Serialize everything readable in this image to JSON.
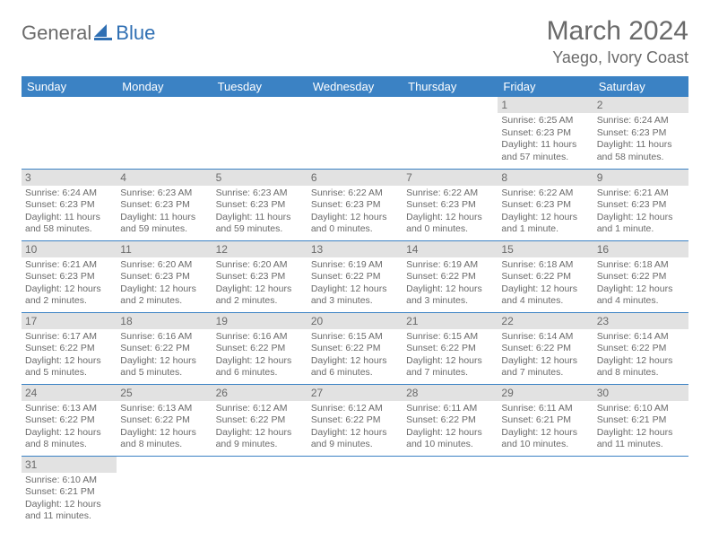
{
  "logo": {
    "word1": "General",
    "word2": "Blue",
    "sail_color": "#2f6fb3"
  },
  "title": "March 2024",
  "location": "Yaego, Ivory Coast",
  "colors": {
    "header_bg": "#3b82c4",
    "header_text": "#ffffff",
    "daynum_bg": "#e2e2e2",
    "text": "#6a6a6a",
    "rule": "#3b82c4"
  },
  "weekdays": [
    "Sunday",
    "Monday",
    "Tuesday",
    "Wednesday",
    "Thursday",
    "Friday",
    "Saturday"
  ],
  "first_weekday_index": 5,
  "days": [
    {
      "n": 1,
      "sunrise": "6:25 AM",
      "sunset": "6:23 PM",
      "daylight": "11 hours and 57 minutes."
    },
    {
      "n": 2,
      "sunrise": "6:24 AM",
      "sunset": "6:23 PM",
      "daylight": "11 hours and 58 minutes."
    },
    {
      "n": 3,
      "sunrise": "6:24 AM",
      "sunset": "6:23 PM",
      "daylight": "11 hours and 58 minutes."
    },
    {
      "n": 4,
      "sunrise": "6:23 AM",
      "sunset": "6:23 PM",
      "daylight": "11 hours and 59 minutes."
    },
    {
      "n": 5,
      "sunrise": "6:23 AM",
      "sunset": "6:23 PM",
      "daylight": "11 hours and 59 minutes."
    },
    {
      "n": 6,
      "sunrise": "6:22 AM",
      "sunset": "6:23 PM",
      "daylight": "12 hours and 0 minutes."
    },
    {
      "n": 7,
      "sunrise": "6:22 AM",
      "sunset": "6:23 PM",
      "daylight": "12 hours and 0 minutes."
    },
    {
      "n": 8,
      "sunrise": "6:22 AM",
      "sunset": "6:23 PM",
      "daylight": "12 hours and 1 minute."
    },
    {
      "n": 9,
      "sunrise": "6:21 AM",
      "sunset": "6:23 PM",
      "daylight": "12 hours and 1 minute."
    },
    {
      "n": 10,
      "sunrise": "6:21 AM",
      "sunset": "6:23 PM",
      "daylight": "12 hours and 2 minutes."
    },
    {
      "n": 11,
      "sunrise": "6:20 AM",
      "sunset": "6:23 PM",
      "daylight": "12 hours and 2 minutes."
    },
    {
      "n": 12,
      "sunrise": "6:20 AM",
      "sunset": "6:23 PM",
      "daylight": "12 hours and 2 minutes."
    },
    {
      "n": 13,
      "sunrise": "6:19 AM",
      "sunset": "6:22 PM",
      "daylight": "12 hours and 3 minutes."
    },
    {
      "n": 14,
      "sunrise": "6:19 AM",
      "sunset": "6:22 PM",
      "daylight": "12 hours and 3 minutes."
    },
    {
      "n": 15,
      "sunrise": "6:18 AM",
      "sunset": "6:22 PM",
      "daylight": "12 hours and 4 minutes."
    },
    {
      "n": 16,
      "sunrise": "6:18 AM",
      "sunset": "6:22 PM",
      "daylight": "12 hours and 4 minutes."
    },
    {
      "n": 17,
      "sunrise": "6:17 AM",
      "sunset": "6:22 PM",
      "daylight": "12 hours and 5 minutes."
    },
    {
      "n": 18,
      "sunrise": "6:16 AM",
      "sunset": "6:22 PM",
      "daylight": "12 hours and 5 minutes."
    },
    {
      "n": 19,
      "sunrise": "6:16 AM",
      "sunset": "6:22 PM",
      "daylight": "12 hours and 6 minutes."
    },
    {
      "n": 20,
      "sunrise": "6:15 AM",
      "sunset": "6:22 PM",
      "daylight": "12 hours and 6 minutes."
    },
    {
      "n": 21,
      "sunrise": "6:15 AM",
      "sunset": "6:22 PM",
      "daylight": "12 hours and 7 minutes."
    },
    {
      "n": 22,
      "sunrise": "6:14 AM",
      "sunset": "6:22 PM",
      "daylight": "12 hours and 7 minutes."
    },
    {
      "n": 23,
      "sunrise": "6:14 AM",
      "sunset": "6:22 PM",
      "daylight": "12 hours and 8 minutes."
    },
    {
      "n": 24,
      "sunrise": "6:13 AM",
      "sunset": "6:22 PM",
      "daylight": "12 hours and 8 minutes."
    },
    {
      "n": 25,
      "sunrise": "6:13 AM",
      "sunset": "6:22 PM",
      "daylight": "12 hours and 8 minutes."
    },
    {
      "n": 26,
      "sunrise": "6:12 AM",
      "sunset": "6:22 PM",
      "daylight": "12 hours and 9 minutes."
    },
    {
      "n": 27,
      "sunrise": "6:12 AM",
      "sunset": "6:22 PM",
      "daylight": "12 hours and 9 minutes."
    },
    {
      "n": 28,
      "sunrise": "6:11 AM",
      "sunset": "6:22 PM",
      "daylight": "12 hours and 10 minutes."
    },
    {
      "n": 29,
      "sunrise": "6:11 AM",
      "sunset": "6:21 PM",
      "daylight": "12 hours and 10 minutes."
    },
    {
      "n": 30,
      "sunrise": "6:10 AM",
      "sunset": "6:21 PM",
      "daylight": "12 hours and 11 minutes."
    },
    {
      "n": 31,
      "sunrise": "6:10 AM",
      "sunset": "6:21 PM",
      "daylight": "12 hours and 11 minutes."
    }
  ],
  "labels": {
    "sunrise": "Sunrise:",
    "sunset": "Sunset:",
    "daylight": "Daylight:"
  }
}
